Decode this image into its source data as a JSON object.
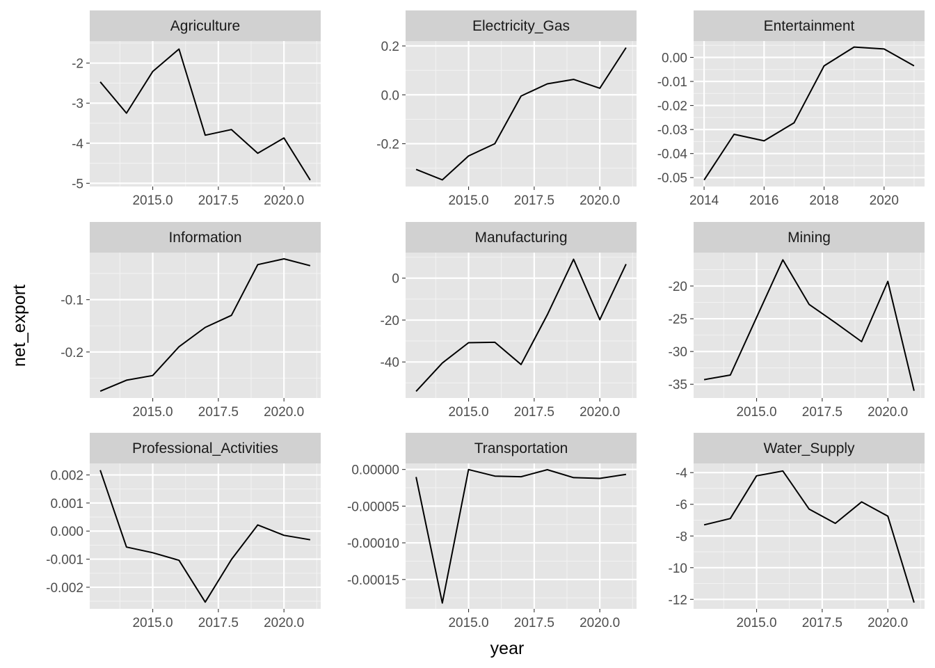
{
  "chart_data": {
    "type": "line",
    "layout": "facet-grid-3x3",
    "xlabel": "year",
    "ylabel": "net_export",
    "colors": {
      "panel_background": "#e5e5e5",
      "strip_background": "#d1d1d1",
      "grid_major": "#ffffff",
      "grid_minor": "#f2f2f2",
      "line": "#000000",
      "tick_text": "#4d4d4d"
    },
    "facets": [
      {
        "name": "Agriculture",
        "x": [
          2013,
          2014,
          2015,
          2016,
          2017,
          2018,
          2019,
          2020,
          2021
        ],
        "values": [
          -2.47,
          -3.25,
          -2.21,
          -1.65,
          -3.8,
          -3.66,
          -4.25,
          -3.87,
          -4.92
        ],
        "xlim": [
          2012.6,
          2021.4
        ],
        "ylim": [
          -5.08,
          -1.45
        ],
        "xticks": [
          2015,
          2017.5,
          2020
        ],
        "xtick_labels": [
          "2015.0",
          "2017.5",
          "2020.0"
        ],
        "yticks": [
          -5,
          -4,
          -3,
          -2
        ],
        "ytick_labels": [
          "-5",
          "-4",
          "-3",
          "-2"
        ]
      },
      {
        "name": "Electricity_Gas",
        "x": [
          2013,
          2014,
          2015,
          2016,
          2017,
          2018,
          2019,
          2020,
          2021
        ],
        "values": [
          -0.305,
          -0.348,
          -0.25,
          -0.2,
          -0.005,
          0.045,
          0.063,
          0.027,
          0.193
        ],
        "xlim": [
          2012.6,
          2021.4
        ],
        "ylim": [
          -0.375,
          0.22
        ],
        "xticks": [
          2015,
          2017.5,
          2020
        ],
        "xtick_labels": [
          "2015.0",
          "2017.5",
          "2020.0"
        ],
        "yticks": [
          -0.2,
          0,
          0.2
        ],
        "ytick_labels": [
          "-0.2",
          "0.0",
          "0.2"
        ]
      },
      {
        "name": "Entertainment",
        "x": [
          2014,
          2015,
          2016,
          2017,
          2018,
          2019,
          2020,
          2021
        ],
        "values": [
          -0.051,
          -0.032,
          -0.0347,
          -0.0272,
          -0.0035,
          0.0043,
          0.0035,
          -0.0035
        ],
        "xlim": [
          2013.65,
          2021.35
        ],
        "ylim": [
          -0.0537,
          0.0068
        ],
        "xticks": [
          2014,
          2016,
          2018,
          2020
        ],
        "xtick_labels": [
          "2014",
          "2016",
          "2018",
          "2020"
        ],
        "yticks": [
          -0.05,
          -0.04,
          -0.03,
          -0.02,
          -0.01,
          0
        ],
        "ytick_labels": [
          "-0.05",
          "-0.04",
          "-0.03",
          "-0.02",
          "-0.01",
          "0.00"
        ]
      },
      {
        "name": "Information",
        "x": [
          2013,
          2014,
          2015,
          2016,
          2017,
          2018,
          2019,
          2020,
          2021
        ],
        "values": [
          -0.275,
          -0.254,
          -0.245,
          -0.19,
          -0.153,
          -0.13,
          -0.033,
          -0.022,
          -0.035
        ],
        "xlim": [
          2012.6,
          2021.4
        ],
        "ylim": [
          -0.288,
          -0.01
        ],
        "xticks": [
          2015,
          2017.5,
          2020
        ],
        "xtick_labels": [
          "2015.0",
          "2017.5",
          "2020.0"
        ],
        "yticks": [
          -0.2,
          -0.1
        ],
        "ytick_labels": [
          "-0.2",
          "-0.1"
        ]
      },
      {
        "name": "Manufacturing",
        "x": [
          2013,
          2014,
          2015,
          2016,
          2017,
          2018,
          2019,
          2020,
          2021
        ],
        "values": [
          -54.0,
          -40.5,
          -30.8,
          -30.6,
          -41.2,
          -17.5,
          9.0,
          -19.8,
          6.7
        ],
        "xlim": [
          2012.6,
          2021.4
        ],
        "ylim": [
          -57.2,
          12.2
        ],
        "xticks": [
          2015,
          2017.5,
          2020
        ],
        "xtick_labels": [
          "2015.0",
          "2017.5",
          "2020.0"
        ],
        "yticks": [
          -40,
          -20,
          0
        ],
        "ytick_labels": [
          "-40",
          "-20",
          "0"
        ]
      },
      {
        "name": "Mining",
        "x": [
          2013,
          2014,
          2015,
          2016,
          2017,
          2018,
          2019,
          2020,
          2021
        ],
        "values": [
          -34.3,
          -33.6,
          -24.8,
          -16.0,
          -22.8,
          -25.6,
          -28.5,
          -19.3,
          -36.0
        ],
        "xlim": [
          2012.6,
          2021.4
        ],
        "ylim": [
          -37.1,
          -14.9
        ],
        "xticks": [
          2015,
          2017.5,
          2020
        ],
        "xtick_labels": [
          "2015.0",
          "2017.5",
          "2020.0"
        ],
        "yticks": [
          -35,
          -30,
          -25,
          -20
        ],
        "ytick_labels": [
          "-35",
          "-30",
          "-25",
          "-20"
        ]
      },
      {
        "name": "Professional_Activities",
        "x": [
          2013,
          2014,
          2015,
          2016,
          2017,
          2018,
          2019,
          2020,
          2021
        ],
        "values": [
          0.00217,
          -0.00057,
          -0.00077,
          -0.00104,
          -0.00253,
          -0.00101,
          0.00022,
          -0.00015,
          -0.00031
        ],
        "xlim": [
          2012.6,
          2021.4
        ],
        "ylim": [
          -0.00277,
          0.00241
        ],
        "xticks": [
          2015,
          2017.5,
          2020
        ],
        "xtick_labels": [
          "2015.0",
          "2017.5",
          "2020.0"
        ],
        "yticks": [
          -0.002,
          -0.001,
          0,
          0.001,
          0.002
        ],
        "ytick_labels": [
          "-0.002",
          "-0.001",
          "0.000",
          "0.001",
          "0.002"
        ]
      },
      {
        "name": "Transportation",
        "x": [
          2013,
          2014,
          2015,
          2016,
          2017,
          2018,
          2019,
          2020,
          2021
        ],
        "values": [
          -1.03e-05,
          -0.000182,
          -1e-07,
          -9.1e-06,
          -9.9e-06,
          -3e-07,
          -1.11e-05,
          -1.22e-05,
          -6.7e-06
        ],
        "xlim": [
          2012.6,
          2021.4
        ],
        "ylim": [
          -0.00019,
          8.2e-06
        ],
        "xticks": [
          2015,
          2017.5,
          2020
        ],
        "xtick_labels": [
          "2015.0",
          "2017.5",
          "2020.0"
        ],
        "yticks": [
          -0.00015,
          -0.0001,
          -5e-05,
          0
        ],
        "ytick_labels": [
          "-0.00015",
          "-0.00010",
          "-0.00005",
          "0.00000"
        ]
      },
      {
        "name": "Water_Supply",
        "x": [
          2013,
          2014,
          2015,
          2016,
          2017,
          2018,
          2019,
          2020,
          2021
        ],
        "values": [
          -7.3,
          -6.9,
          -4.2,
          -3.9,
          -6.3,
          -7.2,
          -5.85,
          -6.75,
          -12.2
        ],
        "xlim": [
          2012.6,
          2021.4
        ],
        "ylim": [
          -12.6,
          -3.42
        ],
        "xticks": [
          2015,
          2017.5,
          2020
        ],
        "xtick_labels": [
          "2015.0",
          "2017.5",
          "2020.0"
        ],
        "yticks": [
          -12,
          -10,
          -8,
          -6,
          -4
        ],
        "ytick_labels": [
          "-12",
          "-10",
          "-8",
          "-6",
          "-4"
        ]
      }
    ]
  }
}
